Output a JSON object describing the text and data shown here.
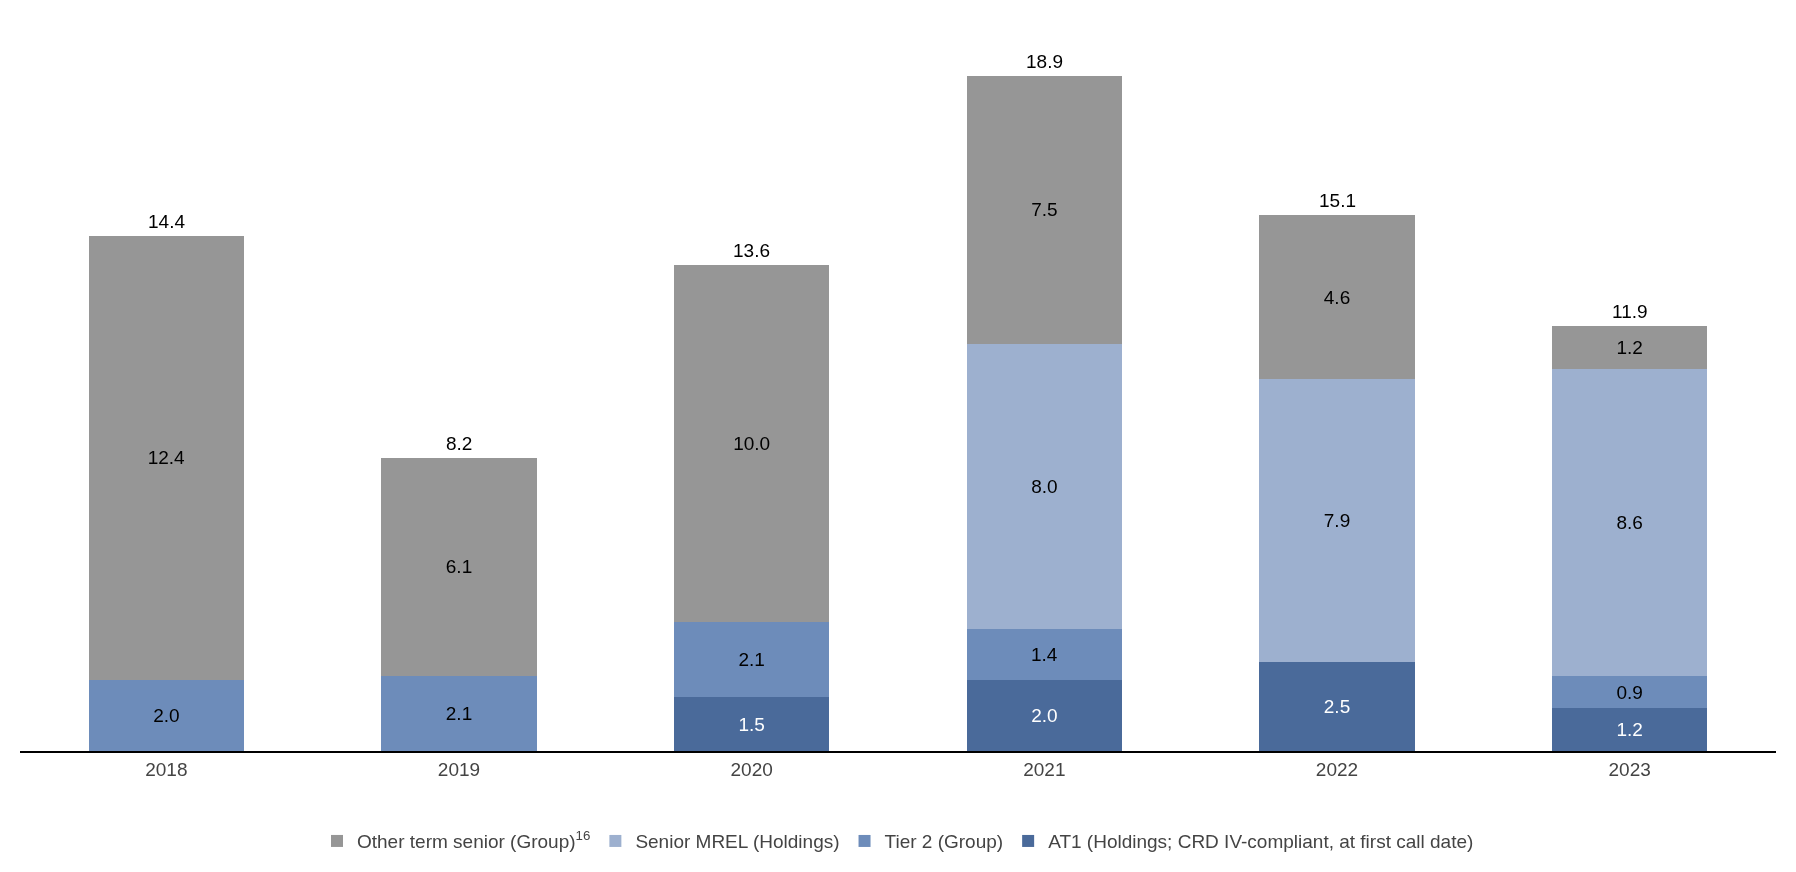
{
  "chart_data": {
    "type": "bar",
    "stacked": true,
    "grid": false,
    "legend": "bottom",
    "tick_labels": "x",
    "categories": [
      "2018",
      "2019",
      "2020",
      "2021",
      "2022",
      "2023"
    ],
    "series": [
      {
        "name": "AT1 (Holdings; CRD IV-compliant, at first call date)",
        "color": "#4a6a9a",
        "values": [
          null,
          null,
          1.5,
          2.0,
          2.5,
          1.2
        ],
        "value_labels": [
          null,
          null,
          "1.5",
          "2.0",
          "2.5",
          "1.2"
        ]
      },
      {
        "name": "Tier 2 (Group)",
        "color": "#6d8cba",
        "values": [
          2.0,
          2.1,
          2.1,
          1.4,
          null,
          0.9
        ],
        "value_labels": [
          "2.0",
          "2.1",
          "2.1",
          "1.4",
          null,
          "0.9"
        ]
      },
      {
        "name": "Senior MREL (Holdings)",
        "color": "#9db0cf",
        "values": [
          null,
          null,
          null,
          8.0,
          7.9,
          8.6
        ],
        "value_labels": [
          null,
          null,
          null,
          "8.0",
          "7.9",
          "8.6"
        ]
      },
      {
        "name": "Other term senior (Group)$^{16}$",
        "color": "#969696",
        "values": [
          12.4,
          6.1,
          10.0,
          7.5,
          4.6,
          1.2
        ],
        "value_labels": [
          "12.4",
          "6.1",
          "10.0",
          "7.5",
          "4.6",
          "1.2"
        ]
      }
    ],
    "totals": [
      "14.4",
      "8.2",
      "13.6",
      "18.9",
      "15.1",
      "11.9"
    ]
  }
}
